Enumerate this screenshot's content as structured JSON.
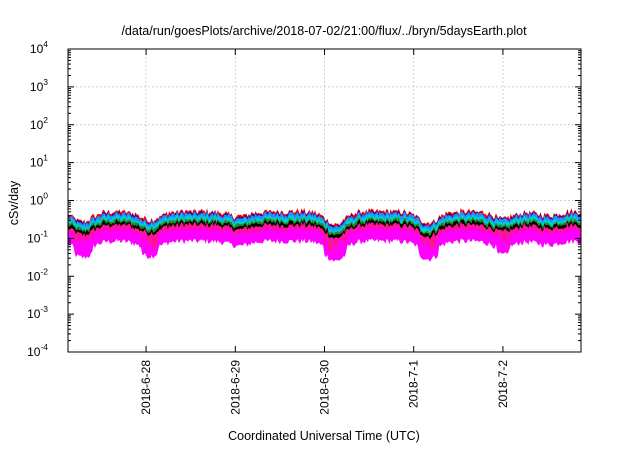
{
  "chart_data": {
    "type": "area",
    "title": "/data/run/goesPlots/archive/2018-07-02/21:00/flux/../bryn/5daysEarth.plot",
    "xlabel": "Coordinated Universal Time (UTC)",
    "ylabel": "cSv/day",
    "yscale": "log",
    "ylim": [
      0.0001,
      10000
    ],
    "xlim": [
      "2018-06-27 03:00",
      "2018-07-02 21:00"
    ],
    "grid": true,
    "y_ticks": [
      {
        "base": "10",
        "exp": "-4",
        "value": 0.0001
      },
      {
        "base": "10",
        "exp": "-3",
        "value": 0.001
      },
      {
        "base": "10",
        "exp": "-2",
        "value": 0.01
      },
      {
        "base": "10",
        "exp": "-1",
        "value": 0.1
      },
      {
        "base": "10",
        "exp": "0",
        "value": 1
      },
      {
        "base": "10",
        "exp": "1",
        "value": 10
      },
      {
        "base": "10",
        "exp": "2",
        "value": 100
      },
      {
        "base": "10",
        "exp": "3",
        "value": 1000
      },
      {
        "base": "10",
        "exp": "4",
        "value": 10000
      }
    ],
    "x_ticks": [
      {
        "label": "2018-6-28",
        "value": "2018-06-28 00:00"
      },
      {
        "label": "2018-6-29",
        "value": "2018-06-29 00:00"
      },
      {
        "label": "2018-6-30",
        "value": "2018-06-30 00:00"
      },
      {
        "label": "2018-7-1",
        "value": "2018-07-01 00:00"
      },
      {
        "label": "2018-7-2",
        "value": "2018-07-02 00:00"
      }
    ],
    "dips": [
      {
        "at": "2018-06-27 07:00",
        "factor": 0.55
      },
      {
        "at": "2018-06-28 01:00",
        "factor": 0.6
      },
      {
        "at": "2018-06-29 01:00",
        "factor": 0.75
      },
      {
        "at": "2018-06-30 03:00",
        "factor": 0.45
      },
      {
        "at": "2018-07-01 04:00",
        "factor": 0.5
      },
      {
        "at": "2018-07-02 00:00",
        "factor": 0.65
      },
      {
        "at": "2018-07-02 12:00",
        "factor": 0.8
      }
    ],
    "series": [
      {
        "color": "#ff00ff",
        "values_base": 0.17
      },
      {
        "color": "#ff1493",
        "values_base": 0.22
      },
      {
        "color": "#000000",
        "values_base": 0.26
      },
      {
        "color": "#228b22",
        "values_base": 0.3
      },
      {
        "color": "#00cfcf",
        "values_base": 0.36
      },
      {
        "color": "#1e90ff",
        "values_base": 0.43
      },
      {
        "color": "#ff0000",
        "values_base": 0.5
      },
      {
        "color": "#4b0082",
        "values_base": 0.46
      }
    ]
  }
}
